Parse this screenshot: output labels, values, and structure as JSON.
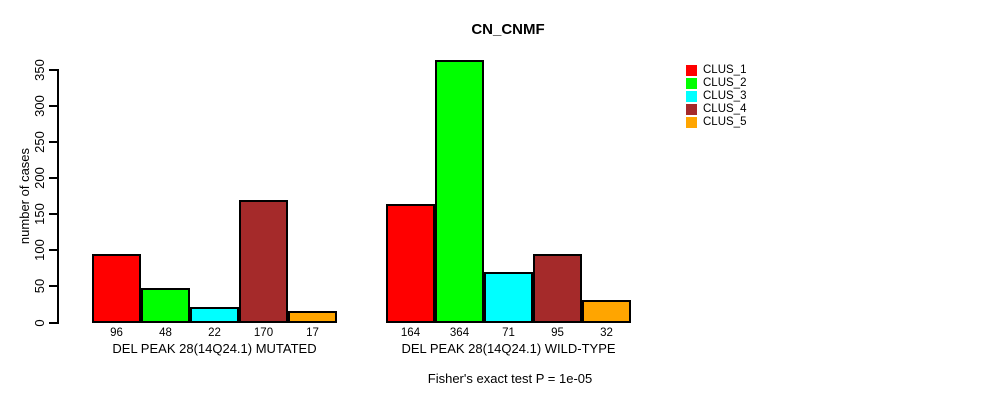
{
  "chart_data": {
    "type": "bar",
    "title": "CN_CNMF",
    "ylabel": "number of cases",
    "ylim": [
      0,
      350
    ],
    "yticks": [
      0,
      50,
      100,
      150,
      200,
      250,
      300,
      350
    ],
    "grid": false,
    "legend_position": "top-right",
    "categories": [
      "DEL PEAK 28(14Q24.1) MUTATED",
      "DEL PEAK 28(14Q24.1) WILD-TYPE"
    ],
    "series": [
      {
        "name": "CLUS_1",
        "color": "#FF0000",
        "values": [
          96,
          164
        ]
      },
      {
        "name": "CLUS_2",
        "color": "#00FF00",
        "values": [
          48,
          364
        ]
      },
      {
        "name": "CLUS_3",
        "color": "#00FFFF",
        "values": [
          22,
          71
        ]
      },
      {
        "name": "CLUS_4",
        "color": "#A52A2A",
        "values": [
          170,
          95
        ]
      },
      {
        "name": "CLUS_5",
        "color": "#FFA500",
        "values": [
          17,
          32
        ]
      }
    ],
    "bar_value_labels": [
      [
        "96",
        "48",
        "22",
        "170",
        "17"
      ],
      [
        "164",
        "364",
        "71",
        "95",
        "32"
      ]
    ],
    "caption": "Fisher's exact test P = 1e-05",
    "bar_border_color": "#000000",
    "axis_color": "#000000"
  }
}
